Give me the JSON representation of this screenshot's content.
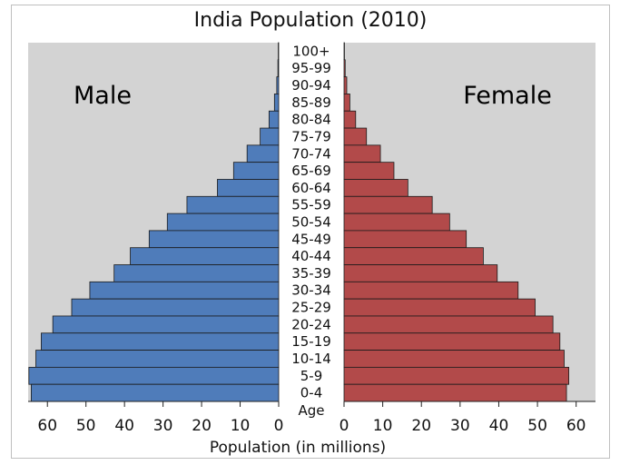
{
  "chart_data": {
    "type": "bar",
    "title": "India Population (2010)",
    "xlabel": "Population (in millions)",
    "ylabel": "Age",
    "xlim": [
      0,
      65
    ],
    "x_ticks": [
      0,
      10,
      20,
      30,
      40,
      50,
      60
    ],
    "male_label": "Male",
    "female_label": "Female",
    "categories": [
      "100+",
      "95-99",
      "90-94",
      "85-89",
      "80-84",
      "75-79",
      "70-74",
      "65-69",
      "60-64",
      "55-59",
      "50-54",
      "45-49",
      "40-44",
      "35-39",
      "30-34",
      "25-29",
      "20-24",
      "15-19",
      "10-14",
      "5-9",
      "0-4"
    ],
    "series": [
      {
        "name": "Male",
        "values": [
          0.1,
          0.2,
          0.5,
          1.1,
          2.5,
          4.8,
          8.2,
          11.7,
          15.9,
          23.8,
          28.9,
          33.6,
          38.5,
          42.7,
          49.0,
          53.7,
          58.6,
          61.6,
          63.0,
          64.8,
          64.2
        ]
      },
      {
        "name": "Female",
        "values": [
          0.1,
          0.3,
          0.7,
          1.5,
          3.0,
          5.8,
          9.4,
          12.9,
          16.5,
          22.8,
          27.3,
          31.6,
          36.0,
          39.6,
          45.0,
          49.4,
          54.0,
          55.8,
          56.9,
          58.1,
          57.5
        ]
      }
    ],
    "colors": {
      "male": "#4f7cba",
      "female": "#b24a4a",
      "panel": "#d3d3d3",
      "edge": "#1a1a1a"
    }
  }
}
